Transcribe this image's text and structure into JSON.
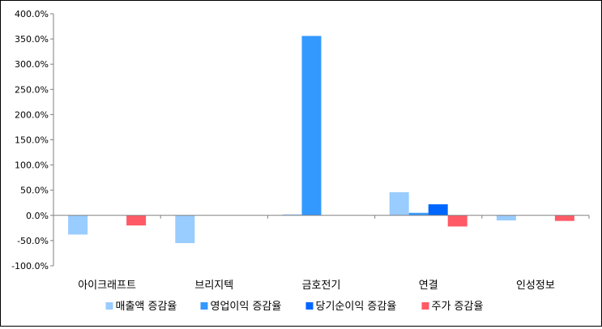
{
  "chart_data": {
    "type": "bar",
    "title": "",
    "xlabel": "",
    "ylabel": "",
    "categories": [
      "아이크래프트",
      "브리지텍",
      "금호전기",
      "연결",
      "인성정보"
    ],
    "series": [
      {
        "name": "매출액 증감율",
        "color": "#99CCFF",
        "values": [
          -38,
          -55,
          2,
          46,
          -10
        ]
      },
      {
        "name": "영업이익 증감율",
        "color": "#3399FF",
        "values": [
          0,
          0,
          356,
          5,
          0
        ]
      },
      {
        "name": "당기순이익 증감율",
        "color": "#0066FF",
        "values": [
          0,
          0,
          0,
          22,
          0
        ]
      },
      {
        "name": "주가 증감율",
        "color": "#FF5A66",
        "values": [
          -20,
          0,
          0,
          -22,
          -11
        ]
      }
    ],
    "ylim": [
      -100,
      400
    ],
    "ytick_step": 50,
    "ytick_labels": [
      "400.0%",
      "350.0%",
      "300.0%",
      "250.0%",
      "200.0%",
      "150.0%",
      "100.0%",
      "50.0%",
      "0.0%",
      "-50.0%",
      "-100.0%"
    ],
    "grid": false,
    "legend_position": "bottom"
  }
}
